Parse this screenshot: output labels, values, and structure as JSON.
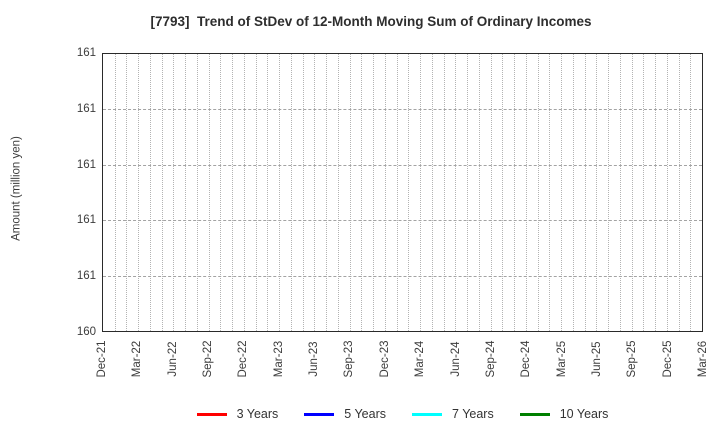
{
  "chart_data": {
    "type": "line",
    "title": "[7793]  Trend of StDev of 12-Month Moving Sum of Ordinary Incomes",
    "xlabel": "",
    "ylabel": "Amount (million yen)",
    "x_tick_labels": [
      "Dec-21",
      "Mar-22",
      "Jun-22",
      "Sep-22",
      "Dec-22",
      "Mar-23",
      "Jun-23",
      "Sep-23",
      "Dec-23",
      "Mar-24",
      "Jun-24",
      "Sep-24",
      "Dec-24",
      "Mar-25",
      "Jun-25",
      "Sep-25",
      "Dec-25",
      "Mar-26"
    ],
    "x_major_unit_months": 3,
    "x_minor_unit_months": 1,
    "y_tick_labels_top_to_bottom": [
      "161",
      "161",
      "161",
      "161",
      "161",
      "160"
    ],
    "ylim_display": [
      160,
      161
    ],
    "grid": true,
    "grid_style": {
      "vertical": "dotted",
      "horizontal": "dashed"
    },
    "legend_position": "bottom-center",
    "series": [
      {
        "name": "3 Years",
        "color": "#ff0000",
        "x": [],
        "values": []
      },
      {
        "name": "5 Years",
        "color": "#0000ff",
        "x": [],
        "values": []
      },
      {
        "name": "7 Years",
        "color": "#00ffff",
        "x": [],
        "values": []
      },
      {
        "name": "10 Years",
        "color": "#008000",
        "x": [],
        "values": []
      }
    ]
  },
  "colors": {
    "frame": "#2a2a2a",
    "grid_vertical": "#b3b3b3",
    "grid_horizontal": "#a3a3a3",
    "text": "#3c3c3c",
    "title_text": "#2e2e2e",
    "background": "#ffffff"
  }
}
